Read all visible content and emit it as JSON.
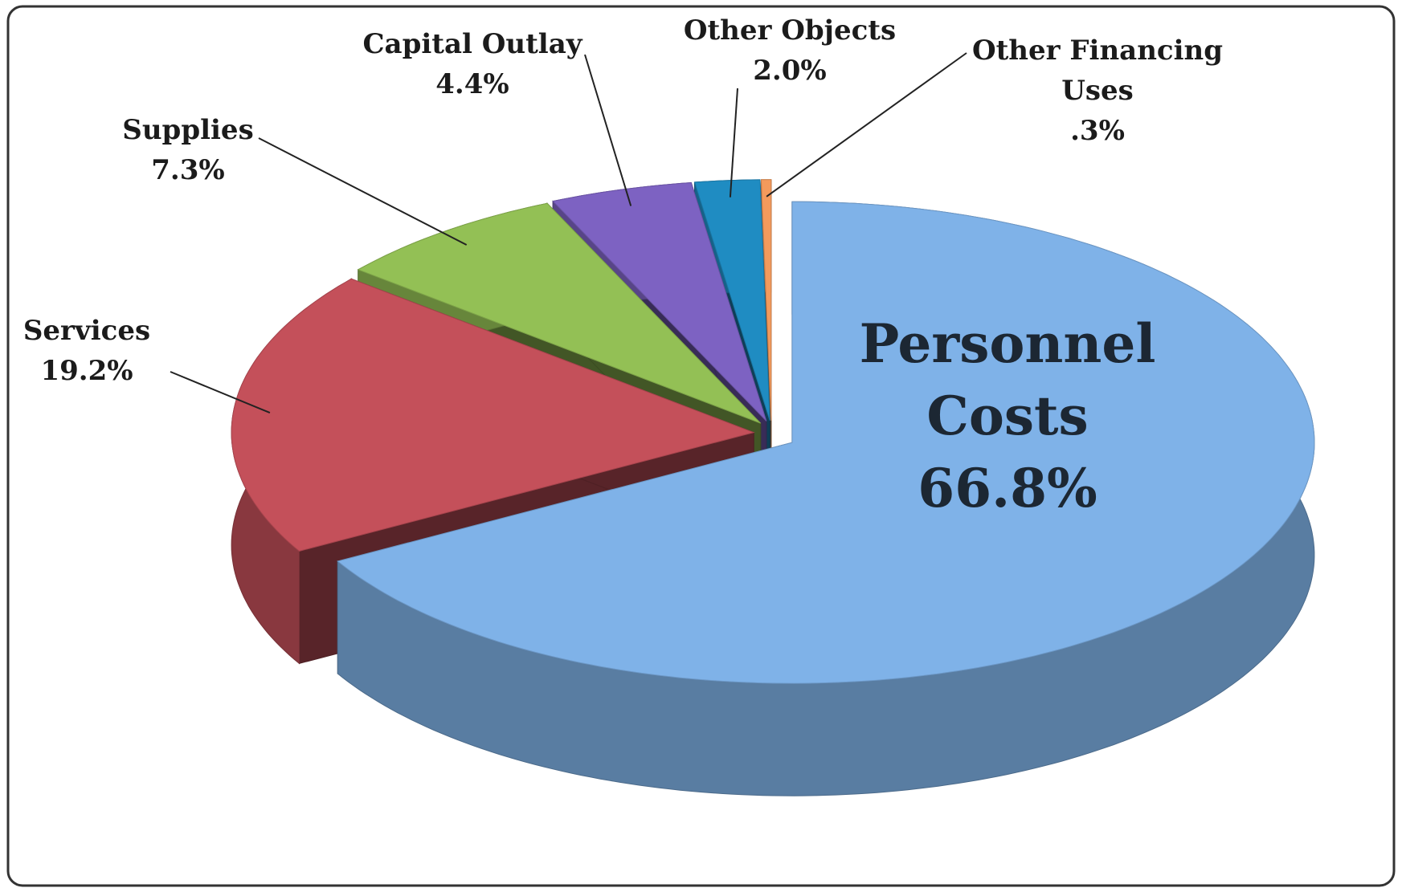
{
  "chart_data": {
    "type": "pie3d",
    "categories": [
      "Personnel Costs",
      "Services",
      "Supplies",
      "Capital Outlay",
      "Other Objects",
      "Other Financing Uses"
    ],
    "values": [
      66.8,
      19.2,
      7.3,
      4.4,
      2.0,
      0.3
    ],
    "value_labels": [
      "66.8%",
      "19.2%",
      "7.3%",
      "4.4%",
      "2.0%",
      ".3%"
    ],
    "colors": [
      "#7fb2e8",
      "#c4505a",
      "#93c055",
      "#7d62c2",
      "#1f8cc2",
      "#f39a5c"
    ]
  }
}
